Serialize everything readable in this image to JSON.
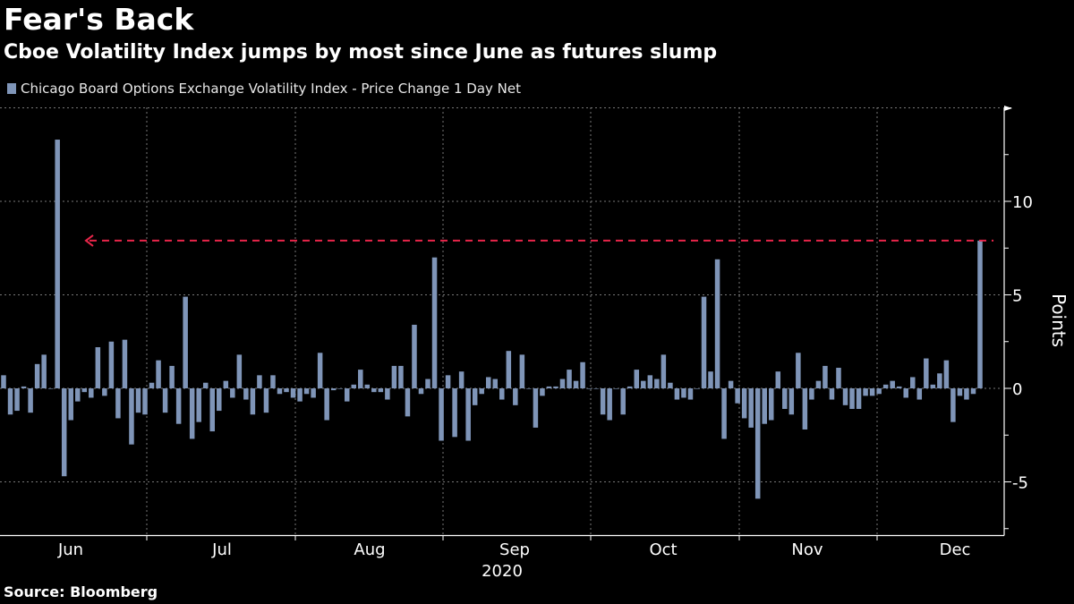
{
  "header": {
    "title": "Fear's Back",
    "subtitle": "Cboe Volatility Index jumps by most since June as futures slump"
  },
  "legend": {
    "label": "Chicago Board Options Exchange Volatility Index - Price Change 1 Day Net"
  },
  "footer": {
    "source": "Source: Bloomberg"
  },
  "colors": {
    "background": "#000000",
    "bar": "#7f95b8",
    "annotation": "#e8264a",
    "grid": "#777777"
  },
  "chart_data": {
    "type": "bar",
    "title": "Fear's Back",
    "subtitle": "Cboe Volatility Index jumps by most since June as futures slump",
    "series": [
      {
        "name": "Chicago Board Options Exchange Volatility Index - Price Change 1 Day Net",
        "values": [
          0.7,
          -1.4,
          -1.2,
          0.1,
          -1.3,
          1.3,
          1.8,
          0,
          13.3,
          -4.7,
          -1.7,
          -0.7,
          -0.2,
          -0.5,
          2.2,
          -0.4,
          2.5,
          -1.6,
          2.6,
          -3.0,
          -1.3,
          -1.4,
          0.3,
          1.5,
          -1.3,
          1.2,
          -1.9,
          4.9,
          -2.7,
          -1.8,
          0.3,
          -2.3,
          -1.2,
          0.4,
          -0.5,
          1.8,
          -0.6,
          -1.4,
          0.7,
          -1.3,
          0.7,
          -0.3,
          -0.2,
          -0.5,
          -0.7,
          -0.3,
          -0.5,
          1.9,
          -1.7,
          -0.1,
          0,
          -0.7,
          0.2,
          1.0,
          0.2,
          -0.2,
          -0.2,
          -0.6,
          1.2,
          1.2,
          -1.5,
          3.4,
          -0.3,
          0.5,
          7.0,
          -2.8,
          0.7,
          -2.6,
          0.9,
          -2.8,
          -0.9,
          -0.3,
          0.6,
          0.5,
          -0.6,
          2.0,
          -0.9,
          1.8,
          0,
          -2.1,
          -0.4,
          0.1,
          0.1,
          0.5,
          1.0,
          0.4,
          1.4,
          0,
          0,
          -1.4,
          -1.7,
          0,
          -1.4,
          0.1,
          1.0,
          0.4,
          0.7,
          0.5,
          1.8,
          0.3,
          -0.6,
          -0.5,
          -0.6,
          0,
          4.9,
          0.9,
          6.9,
          -2.7,
          0.4,
          -0.8,
          -1.6,
          -2.1,
          -5.9,
          -1.9,
          -1.7,
          0.9,
          -1.1,
          -1.4,
          1.9,
          -2.2,
          -0.6,
          0.4,
          1.2,
          -0.6,
          1.1,
          -0.9,
          -1.1,
          -1.1,
          -0.4,
          -0.4,
          -0.3,
          0.2,
          0.4,
          0.1,
          -0.5,
          0.6,
          -0.6,
          1.6,
          0.2,
          0.8,
          1.5,
          -1.8,
          -0.4,
          -0.6,
          -0.3,
          7.9
        ]
      }
    ],
    "x_ticks": [
      "Jun",
      "Jul",
      "Aug",
      "Sep",
      "Oct",
      "Nov",
      "Dec"
    ],
    "x_sublabel": "2020",
    "ylabel": "Points",
    "y_ticks": [
      -5,
      0,
      5,
      10
    ],
    "ylim": [
      -7.8,
      15
    ],
    "grid": true,
    "legend_position": "top-left",
    "annotation": {
      "type": "dashed-arrow",
      "from_index": 147,
      "value": 7.9,
      "direction": "left",
      "to_month": "Jun"
    }
  }
}
